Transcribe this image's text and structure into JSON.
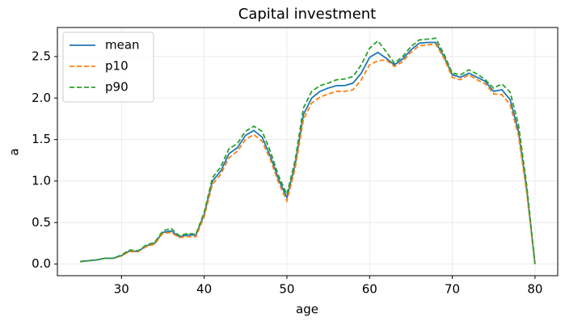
{
  "chart_data": {
    "type": "line",
    "title": "Capital investment",
    "x_label": "age",
    "y_label": "a",
    "x": [
      25,
      26,
      27,
      28,
      29,
      30,
      31,
      32,
      33,
      34,
      35,
      36,
      37,
      38,
      39,
      40,
      41,
      42,
      43,
      44,
      45,
      46,
      47,
      48,
      49,
      50,
      51,
      52,
      53,
      54,
      55,
      56,
      57,
      58,
      59,
      60,
      61,
      62,
      63,
      64,
      65,
      66,
      67,
      68,
      69,
      70,
      71,
      72,
      73,
      74,
      75,
      76,
      77,
      78,
      79,
      80
    ],
    "series": [
      {
        "name": "mean",
        "color": "#1f77b4",
        "linestyle": "solid",
        "values": [
          0.03,
          0.04,
          0.05,
          0.07,
          0.07,
          0.1,
          0.16,
          0.15,
          0.22,
          0.25,
          0.38,
          0.4,
          0.33,
          0.35,
          0.35,
          0.6,
          1.0,
          1.12,
          1.33,
          1.4,
          1.55,
          1.61,
          1.53,
          1.3,
          1.02,
          0.8,
          1.2,
          1.8,
          2.0,
          2.08,
          2.12,
          2.15,
          2.15,
          2.18,
          2.3,
          2.49,
          2.55,
          2.48,
          2.4,
          2.47,
          2.58,
          2.66,
          2.67,
          2.67,
          2.5,
          2.28,
          2.25,
          2.3,
          2.25,
          2.2,
          2.08,
          2.1,
          1.98,
          1.6,
          0.9,
          0.0
        ]
      },
      {
        "name": "p10",
        "color": "#ff7f0e",
        "linestyle": "dashed",
        "values": [
          0.03,
          0.04,
          0.05,
          0.07,
          0.07,
          0.1,
          0.15,
          0.15,
          0.21,
          0.24,
          0.37,
          0.38,
          0.32,
          0.33,
          0.33,
          0.57,
          0.96,
          1.08,
          1.28,
          1.36,
          1.5,
          1.56,
          1.48,
          1.26,
          0.98,
          0.76,
          1.15,
          1.74,
          1.94,
          2.01,
          2.05,
          2.08,
          2.08,
          2.1,
          2.22,
          2.4,
          2.45,
          2.46,
          2.38,
          2.44,
          2.55,
          2.63,
          2.64,
          2.65,
          2.48,
          2.25,
          2.22,
          2.28,
          2.22,
          2.17,
          2.05,
          2.04,
          1.92,
          1.55,
          0.86,
          0.0
        ]
      },
      {
        "name": "p90",
        "color": "#2ca02c",
        "linestyle": "dashed",
        "values": [
          0.03,
          0.04,
          0.05,
          0.07,
          0.07,
          0.11,
          0.17,
          0.16,
          0.23,
          0.26,
          0.4,
          0.43,
          0.34,
          0.37,
          0.36,
          0.62,
          1.04,
          1.17,
          1.39,
          1.45,
          1.6,
          1.66,
          1.6,
          1.36,
          1.06,
          0.84,
          1.25,
          1.88,
          2.08,
          2.15,
          2.18,
          2.22,
          2.23,
          2.26,
          2.4,
          2.6,
          2.69,
          2.56,
          2.42,
          2.5,
          2.62,
          2.7,
          2.71,
          2.72,
          2.53,
          2.3,
          2.28,
          2.34,
          2.29,
          2.22,
          2.12,
          2.17,
          2.07,
          1.68,
          0.95,
          0.0
        ]
      }
    ],
    "xlim": [
      22.25,
      82.75
    ],
    "ylim": [
      -0.14,
      2.85
    ],
    "xticks": [
      30,
      40,
      50,
      60,
      70,
      80
    ],
    "yticks": [
      {
        "value": 0,
        "label": "0.0"
      },
      {
        "value": 0.5,
        "label": "0.5"
      },
      {
        "value": 1,
        "label": "1.0"
      },
      {
        "value": 1.5,
        "label": "1.5"
      },
      {
        "value": 2,
        "label": "2.0"
      },
      {
        "value": 2.5,
        "label": "2.5"
      }
    ],
    "grid": true,
    "legend": "upper left"
  }
}
